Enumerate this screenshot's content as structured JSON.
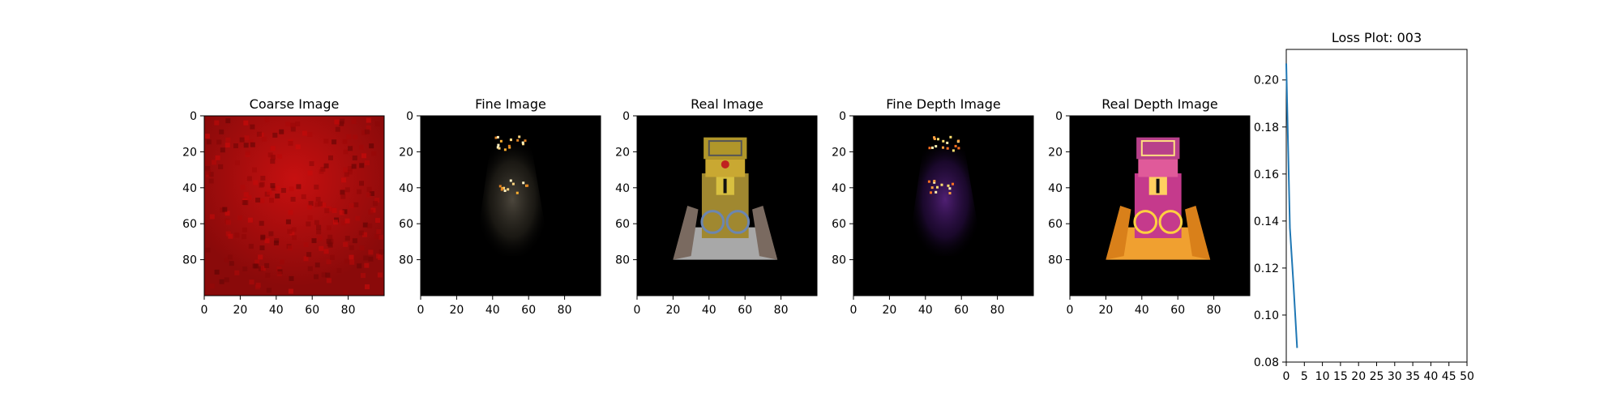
{
  "figure": {
    "panels": [
      {
        "id": "coarse",
        "title": "Coarse Image",
        "kind": "coarse"
      },
      {
        "id": "fine",
        "title": "Fine Image",
        "kind": "fine"
      },
      {
        "id": "real",
        "title": "Real Image",
        "kind": "real"
      },
      {
        "id": "fine_depth",
        "title": "Fine Depth Image",
        "kind": "fine_depth"
      },
      {
        "id": "real_depth",
        "title": "Real Depth Image",
        "kind": "real_depth"
      }
    ],
    "image_axes": {
      "x_ticks": [
        0,
        20,
        40,
        60,
        80
      ],
      "y_ticks": [
        0,
        20,
        40,
        60,
        80
      ],
      "extent": [
        0,
        100
      ]
    }
  },
  "chart_data": {
    "type": "line",
    "title": "Loss Plot: 003",
    "xlabel": "",
    "ylabel": "",
    "xlim": [
      0,
      50
    ],
    "ylim": [
      0.08,
      0.213
    ],
    "x_ticks": [
      0,
      5,
      10,
      15,
      20,
      25,
      30,
      35,
      40,
      45,
      50
    ],
    "y_ticks": [
      0.08,
      0.1,
      0.12,
      0.14,
      0.16,
      0.18,
      0.2
    ],
    "y_tick_labels": [
      "0.08",
      "0.10",
      "0.12",
      "0.14",
      "0.16",
      "0.18",
      "0.20"
    ],
    "series": [
      {
        "color": "#1f77b4",
        "x": [
          0,
          1,
          2,
          3
        ],
        "y": [
          0.207,
          0.137,
          0.113,
          0.086
        ]
      }
    ],
    "grid": false
  }
}
